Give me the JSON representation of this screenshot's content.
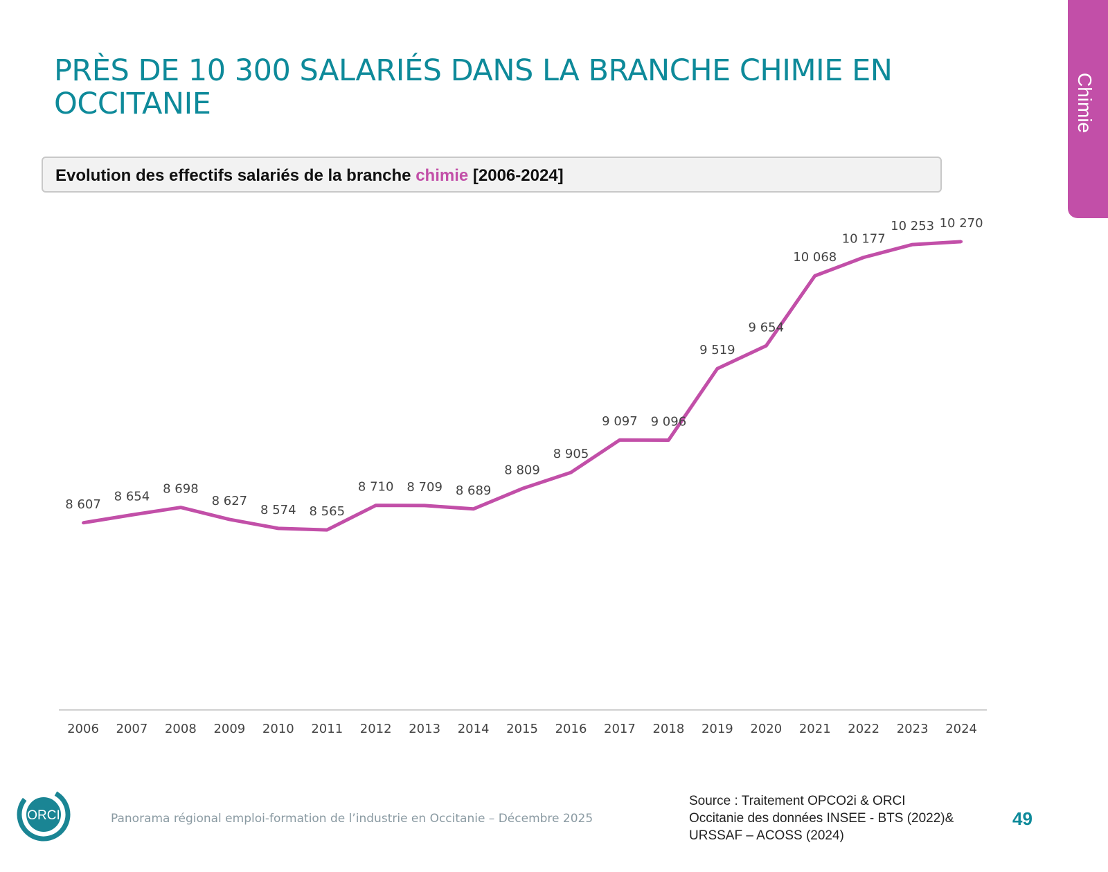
{
  "page": {
    "title": "PRÈS DE 10 300 SALARIÉS DANS LA BRANCHE CHIMIE EN OCCITANIE",
    "side_tab": "Chimie",
    "footer": "Panorama régional emploi-formation de l’industrie en Occitanie – Décembre 2025",
    "source_lines": [
      "Source : Traitement OPCO2i & ORCI",
      "Occitanie des données  INSEE - BTS (2022)&",
      "URSSAF – ACOSS (2024)"
    ],
    "page_number": "49",
    "logo_text": "ORCI",
    "colors": {
      "accent": "#0e8a9a",
      "series": "#c24fa8"
    }
  },
  "chart_data": {
    "type": "line",
    "title_parts": {
      "before": "Evolution des effectifs salariés de la branche ",
      "highlight": "chimie",
      "after": " [2006-2024]"
    },
    "categories": [
      "2006",
      "2007",
      "2008",
      "2009",
      "2010",
      "2011",
      "2012",
      "2013",
      "2014",
      "2015",
      "2016",
      "2017",
      "2018",
      "2019",
      "2020",
      "2021",
      "2022",
      "2023",
      "2024"
    ],
    "values": [
      8607,
      8654,
      8698,
      8627,
      8574,
      8565,
      8710,
      8709,
      8689,
      8809,
      8905,
      9097,
      9096,
      9519,
      9654,
      10068,
      10177,
      10253,
      10270
    ],
    "data_labels": [
      "8 607",
      "8 654",
      "8 698",
      "8 627",
      "8 574",
      "8 565",
      "8 710",
      "8 709",
      "8 689",
      "8 809",
      "8 905",
      "9 097",
      "9 096",
      "9 519",
      "9 654",
      "10 068",
      "10 177",
      "10 253",
      "10 270"
    ],
    "ylim": [
      7500,
      10450
    ],
    "grid": false,
    "legend": "none",
    "series_color": "#c24fa8"
  }
}
